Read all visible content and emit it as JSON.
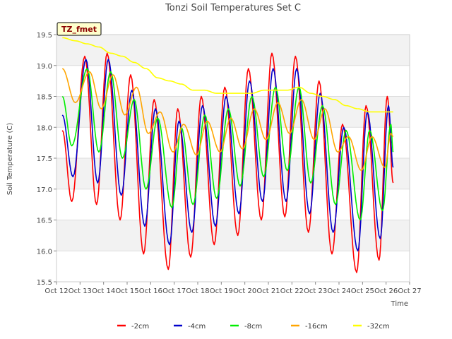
{
  "chart_data": {
    "type": "line",
    "title": "Tonzi Soil Temperatures Set C",
    "xlabel": "Time",
    "ylabel": "Soil Temperature (C)",
    "badge": "TZ_fmet",
    "xlim": [
      12,
      27
    ],
    "ylim": [
      15.5,
      19.5
    ],
    "x_ticks": [
      12,
      13,
      14,
      15,
      16,
      17,
      18,
      19,
      20,
      21,
      22,
      23,
      24,
      25,
      26,
      27
    ],
    "x_tick_labels": [
      "Oct 12",
      "Oct 13",
      "Oct 14",
      "Oct 15",
      "Oct 16",
      "Oct 17",
      "Oct 18",
      "Oct 19",
      "Oct 20",
      "Oct 21",
      "Oct 22",
      "Oct 23",
      "Oct 24",
      "Oct 25",
      "Oct 26",
      "Oct 27"
    ],
    "y_ticks": [
      15.5,
      16.0,
      16.5,
      17.0,
      17.5,
      18.0,
      18.5,
      19.0,
      19.5
    ],
    "y_tick_labels": [
      "15.5",
      "16.0",
      "16.5",
      "17.0",
      "17.5",
      "18.0",
      "18.5",
      "19.0",
      "19.5"
    ],
    "legend_position": "bottom",
    "series": [
      {
        "name": "-2cm",
        "color": "#ff0000",
        "x": [
          12.25,
          12.65,
          13.2,
          13.7,
          14.15,
          14.7,
          15.15,
          15.7,
          16.15,
          16.75,
          17.15,
          17.7,
          18.15,
          18.7,
          19.15,
          19.7,
          20.15,
          20.7,
          21.15,
          21.7,
          22.15,
          22.7,
          23.15,
          23.7,
          24.15,
          24.75,
          25.15,
          25.7,
          26.05,
          26.3
        ],
        "y": [
          17.95,
          16.8,
          19.15,
          16.75,
          19.2,
          16.5,
          18.85,
          15.95,
          18.45,
          15.7,
          18.3,
          15.9,
          18.5,
          16.1,
          18.65,
          16.25,
          18.95,
          16.5,
          19.2,
          16.55,
          19.15,
          16.3,
          18.75,
          15.95,
          18.05,
          15.65,
          18.35,
          15.85,
          18.5,
          17.1
        ]
      },
      {
        "name": "-4cm",
        "color": "#0000cc",
        "x": [
          12.25,
          12.7,
          13.25,
          13.75,
          14.2,
          14.75,
          15.2,
          15.75,
          16.2,
          16.8,
          17.2,
          17.75,
          18.2,
          18.75,
          19.2,
          19.75,
          20.2,
          20.75,
          21.2,
          21.75,
          22.2,
          22.75,
          23.2,
          23.75,
          24.2,
          24.8,
          25.2,
          25.75,
          26.1,
          26.3
        ],
        "y": [
          18.2,
          17.2,
          19.1,
          17.1,
          19.1,
          16.9,
          18.6,
          16.4,
          18.3,
          16.1,
          18.1,
          16.3,
          18.35,
          16.4,
          18.5,
          16.6,
          18.75,
          16.8,
          18.95,
          16.8,
          18.95,
          16.6,
          18.55,
          16.3,
          18.0,
          16.0,
          18.25,
          16.2,
          18.35,
          17.35
        ]
      },
      {
        "name": "-8cm",
        "color": "#00ee00",
        "x": [
          12.25,
          12.65,
          13.3,
          13.8,
          14.3,
          14.8,
          15.3,
          15.8,
          16.3,
          16.9,
          17.3,
          17.8,
          18.3,
          18.8,
          19.3,
          19.8,
          20.3,
          20.8,
          21.3,
          21.8,
          22.3,
          22.8,
          23.3,
          23.85,
          24.3,
          24.9,
          25.3,
          25.85,
          26.2,
          26.3
        ],
        "y": [
          18.5,
          17.7,
          18.95,
          17.6,
          18.9,
          17.5,
          18.45,
          17.0,
          18.15,
          16.7,
          18.0,
          16.75,
          18.2,
          16.85,
          18.3,
          17.05,
          18.5,
          17.2,
          18.65,
          17.3,
          18.65,
          17.1,
          18.35,
          16.75,
          17.95,
          16.5,
          17.95,
          16.65,
          18.05,
          17.6
        ]
      },
      {
        "name": "-16cm",
        "color": "#ffa500",
        "x": [
          12.25,
          12.8,
          13.4,
          13.9,
          14.4,
          14.9,
          15.4,
          15.9,
          16.4,
          16.95,
          17.4,
          17.95,
          18.4,
          18.95,
          19.4,
          19.9,
          20.4,
          20.9,
          21.4,
          21.9,
          22.4,
          22.95,
          23.4,
          23.95,
          24.4,
          24.95,
          25.4,
          25.95,
          26.2,
          26.3
        ],
        "y": [
          18.95,
          18.4,
          18.9,
          18.3,
          18.85,
          18.2,
          18.65,
          17.9,
          18.25,
          17.6,
          18.05,
          17.55,
          18.1,
          17.6,
          18.15,
          17.65,
          18.3,
          17.8,
          18.4,
          17.9,
          18.45,
          17.8,
          18.3,
          17.6,
          17.85,
          17.3,
          17.85,
          17.35,
          17.9,
          17.85
        ]
      },
      {
        "name": "-32cm",
        "color": "#ffff00",
        "x": [
          12.25,
          12.8,
          13.3,
          13.8,
          14.3,
          14.8,
          15.3,
          15.8,
          16.3,
          16.8,
          17.3,
          17.8,
          18.3,
          18.8,
          19.3,
          19.8,
          20.3,
          20.8,
          21.3,
          21.8,
          22.3,
          22.8,
          23.3,
          23.8,
          24.3,
          24.8,
          25.3,
          25.8,
          26.3
        ],
        "y": [
          19.45,
          19.4,
          19.35,
          19.3,
          19.2,
          19.15,
          19.05,
          18.95,
          18.8,
          18.75,
          18.7,
          18.6,
          18.6,
          18.55,
          18.55,
          18.55,
          18.55,
          18.6,
          18.6,
          18.6,
          18.65,
          18.55,
          18.5,
          18.45,
          18.35,
          18.3,
          18.25,
          18.25,
          18.25
        ]
      }
    ]
  }
}
